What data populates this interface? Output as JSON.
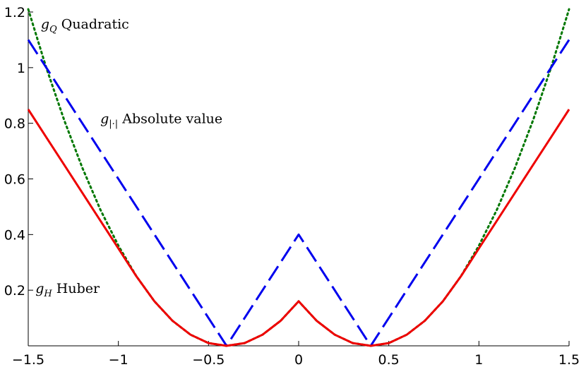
{
  "chart_data": {
    "type": "line",
    "title": "",
    "xlabel": "",
    "ylabel": "",
    "xlim": [
      -1.5,
      1.5
    ],
    "ylim": [
      0,
      1.2
    ],
    "xticks": [
      -1.5,
      -1,
      -0.5,
      0,
      0.5,
      1,
      1.5
    ],
    "xtick_labels": [
      "−1.5",
      "−1",
      "−0.5",
      "0",
      "0.5",
      "1",
      "1.5"
    ],
    "yticks": [
      0.2,
      0.4,
      0.6,
      0.8,
      1,
      1.2
    ],
    "ytick_labels": [
      "0.2",
      "0.4",
      "0.6",
      "0.8",
      "1",
      "1.2"
    ],
    "grid": false,
    "legend": "none",
    "series": [
      {
        "style": "dotted",
        "color": "#007700",
        "x": [
          -1.5,
          -1.4,
          -1.3,
          -1.2,
          -1.1,
          -1.0,
          -0.9,
          -0.8,
          -0.7,
          -0.6,
          -0.5,
          -0.4,
          -0.3,
          -0.2,
          -0.1,
          0.0,
          0.1,
          0.2,
          0.3,
          0.4,
          0.5,
          0.6,
          0.7,
          0.8,
          0.9,
          1.0,
          1.1,
          1.2,
          1.3,
          1.4,
          1.5
        ],
        "y": [
          1.21,
          1.0,
          0.81,
          0.64,
          0.49,
          0.36,
          0.25,
          0.16,
          0.09,
          0.04,
          0.01,
          0.0,
          0.01,
          0.04,
          0.09,
          0.16,
          0.09,
          0.04,
          0.01,
          0.0,
          0.01,
          0.04,
          0.09,
          0.16,
          0.25,
          0.36,
          0.49,
          0.64,
          0.81,
          1.0,
          1.21
        ]
      },
      {
        "style": "dashed",
        "color": "#0000ee",
        "x": [
          -1.5,
          -0.4,
          0.0,
          0.4,
          1.5
        ],
        "y": [
          1.1,
          0.0,
          0.4,
          0.0,
          1.1
        ]
      },
      {
        "style": "solid",
        "color": "#ee0000",
        "x": [
          -1.5,
          -1.4,
          -1.3,
          -1.2,
          -1.1,
          -1.0,
          -0.95,
          -0.9,
          -0.8,
          -0.7,
          -0.6,
          -0.5,
          -0.4,
          -0.3,
          -0.2,
          -0.1,
          0.0,
          0.1,
          0.2,
          0.3,
          0.4,
          0.5,
          0.6,
          0.7,
          0.8,
          0.9,
          0.95,
          1.0,
          1.1,
          1.2,
          1.3,
          1.4,
          1.5
        ],
        "y": [
          0.85,
          0.75,
          0.65,
          0.55,
          0.45,
          0.35,
          0.3,
          0.25,
          0.16,
          0.09,
          0.04,
          0.01,
          0.0,
          0.01,
          0.04,
          0.09,
          0.16,
          0.09,
          0.04,
          0.01,
          0.0,
          0.01,
          0.04,
          0.09,
          0.16,
          0.25,
          0.3,
          0.35,
          0.45,
          0.55,
          0.65,
          0.75,
          0.85
        ]
      }
    ],
    "annotations": [
      {
        "var": "g",
        "sub": "Q",
        "text": " Quadratic",
        "x": -1.43,
        "y": 1.14
      },
      {
        "var": "g",
        "sub": "|·|",
        "text": " Absolute value",
        "x": -1.1,
        "y": 0.8
      },
      {
        "var": "g",
        "sub": "H",
        "text": " Huber",
        "x": -1.46,
        "y": 0.19
      }
    ]
  }
}
